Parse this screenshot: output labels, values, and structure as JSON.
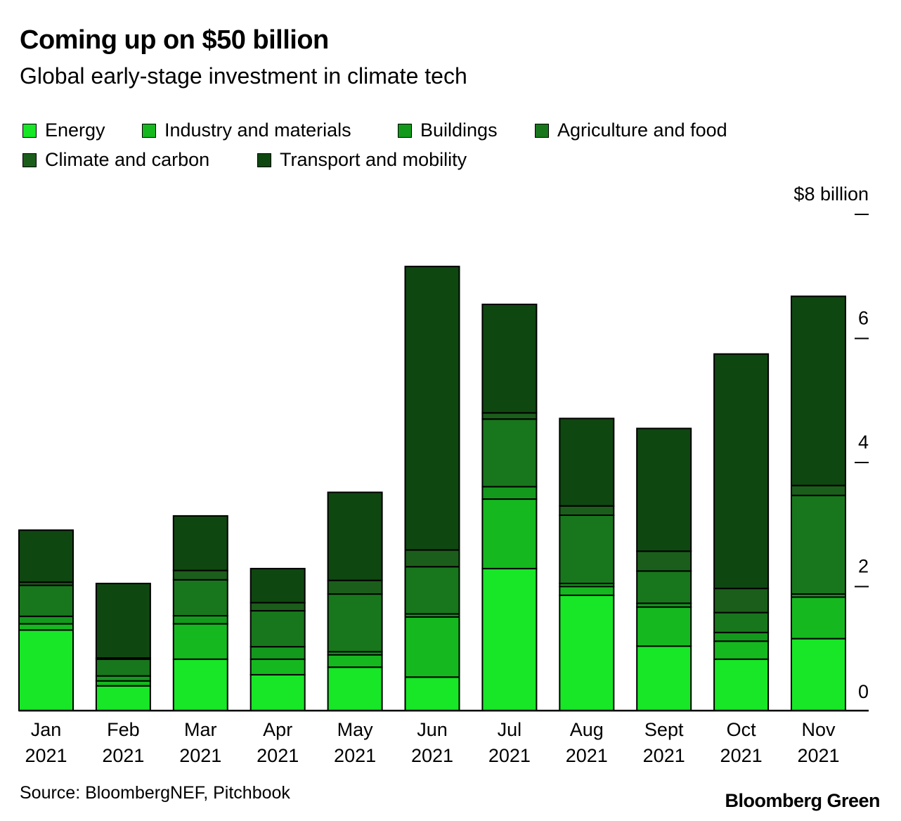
{
  "title": "Coming up on $50 billion",
  "subtitle": "Global early-stage investment in climate tech",
  "source": "Source: BloombergNEF, Pitchbook",
  "brand": "Bloomberg Green",
  "chart_data": {
    "type": "bar",
    "stacked": true,
    "title": "Coming up on $50 billion",
    "subtitle": "Global early-stage investment in climate tech",
    "xlabel": "",
    "ylabel": "",
    "y_unit_label": "$8 billion",
    "ylim": [
      0,
      8
    ],
    "yticks": [
      0,
      2,
      4,
      6,
      8
    ],
    "ytick_labels": [
      "0",
      "2",
      "4",
      "6",
      "$8 billion"
    ],
    "legend_position": "top-left",
    "categories": [
      "Jan 2021",
      "Feb 2021",
      "Mar 2021",
      "Apr 2021",
      "May 2021",
      "Jun 2021",
      "Jul 2021",
      "Aug 2021",
      "Sept 2021",
      "Oct 2021",
      "Nov 2021"
    ],
    "category_lines": [
      [
        "Jan",
        "2021"
      ],
      [
        "Feb",
        "2021"
      ],
      [
        "Mar",
        "2021"
      ],
      [
        "Apr",
        "2021"
      ],
      [
        "May",
        "2021"
      ],
      [
        "Jun",
        "2021"
      ],
      [
        "Jul",
        "2021"
      ],
      [
        "Aug",
        "2021"
      ],
      [
        "Sept",
        "2021"
      ],
      [
        "Oct",
        "2021"
      ],
      [
        "Nov",
        "2021"
      ]
    ],
    "series": [
      {
        "name": "Energy",
        "color": "#17e727",
        "values": [
          1.3,
          0.4,
          0.83,
          0.58,
          0.7,
          0.54,
          2.29,
          1.86,
          1.04,
          0.83,
          1.16
        ]
      },
      {
        "name": "Industry and materials",
        "color": "#15b91f",
        "values": [
          0.1,
          0.08,
          0.57,
          0.25,
          0.2,
          0.97,
          1.12,
          0.14,
          0.63,
          0.29,
          0.67
        ]
      },
      {
        "name": "Buildings",
        "color": "#139a1d",
        "values": [
          0.12,
          0.08,
          0.13,
          0.2,
          0.05,
          0.05,
          0.2,
          0.05,
          0.06,
          0.14,
          0.05
        ]
      },
      {
        "name": "Agriculture and food",
        "color": "#18771c",
        "values": [
          0.5,
          0.27,
          0.58,
          0.58,
          0.93,
          0.76,
          1.09,
          1.1,
          0.52,
          0.32,
          1.59
        ]
      },
      {
        "name": "Climate and carbon",
        "color": "#1b5e1b",
        "values": [
          0.05,
          0.02,
          0.15,
          0.13,
          0.22,
          0.27,
          0.1,
          0.15,
          0.32,
          0.39,
          0.16
        ]
      },
      {
        "name": "Transport and mobility",
        "color": "#0f4711",
        "values": [
          0.84,
          1.2,
          0.88,
          0.55,
          1.42,
          4.57,
          1.75,
          1.41,
          1.98,
          3.78,
          3.05
        ]
      }
    ]
  }
}
